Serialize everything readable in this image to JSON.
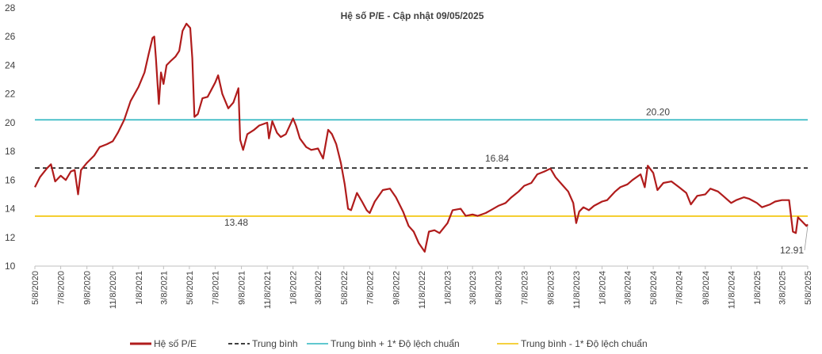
{
  "chart_data": {
    "type": "line",
    "title": "Hệ số P/E - Cập nhật 09/05/2025",
    "ylim": [
      10,
      28
    ],
    "yticks": [
      10,
      12,
      14,
      16,
      18,
      20,
      22,
      24,
      26,
      28
    ],
    "xlim": [
      "2020-05-08",
      "2025-05-08"
    ],
    "xticks": [
      "5/8/2020",
      "7/8/2020",
      "9/8/2020",
      "11/8/2020",
      "1/8/2021",
      "3/8/2021",
      "5/8/2021",
      "7/8/2021",
      "9/8/2021",
      "11/8/2021",
      "1/8/2022",
      "3/8/2022",
      "5/8/2022",
      "7/8/2022",
      "9/8/2022",
      "11/8/2022",
      "1/8/2023",
      "3/8/2023",
      "5/8/2023",
      "7/8/2023",
      "9/8/2023",
      "11/8/2023",
      "1/8/2024",
      "3/8/2024",
      "5/8/2024",
      "7/8/2024",
      "9/8/2024",
      "11/8/2024",
      "1/8/2025",
      "3/8/2025",
      "5/8/2025"
    ],
    "legend_position": "bottom",
    "grid": false,
    "reference_lines": [
      {
        "name": "Trung bình",
        "value": 16.84,
        "label": "16.84",
        "color": "#000000",
        "dash": true
      },
      {
        "name": "Trung bình + 1* Độ lệch chuẩn",
        "value": 20.2,
        "label": "20.20",
        "color": "#2bb5bf",
        "dash": false
      },
      {
        "name": "Trung bình - 1* Độ lệch chuẩn",
        "value": 13.48,
        "label": "13.48",
        "color": "#f2c200",
        "dash": false
      }
    ],
    "last_value_label": "12.91",
    "series": [
      {
        "name": "Hệ số P/E",
        "color": "#b01c1c",
        "points": [
          [
            "2020-05-08",
            15.5
          ],
          [
            "2020-05-20",
            16.2
          ],
          [
            "2020-06-05",
            16.8
          ],
          [
            "2020-06-15",
            17.1
          ],
          [
            "2020-06-25",
            15.9
          ],
          [
            "2020-07-08",
            16.3
          ],
          [
            "2020-07-20",
            16.0
          ],
          [
            "2020-08-01",
            16.6
          ],
          [
            "2020-08-10",
            16.7
          ],
          [
            "2020-08-18",
            15.0
          ],
          [
            "2020-08-25",
            16.7
          ],
          [
            "2020-09-08",
            17.2
          ],
          [
            "2020-09-25",
            17.7
          ],
          [
            "2020-10-08",
            18.3
          ],
          [
            "2020-10-25",
            18.5
          ],
          [
            "2020-11-08",
            18.7
          ],
          [
            "2020-11-20",
            19.3
          ],
          [
            "2020-12-05",
            20.2
          ],
          [
            "2020-12-20",
            21.5
          ],
          [
            "2021-01-08",
            22.5
          ],
          [
            "2021-01-22",
            23.5
          ],
          [
            "2021-02-01",
            24.8
          ],
          [
            "2021-02-10",
            25.9
          ],
          [
            "2021-02-14",
            26.0
          ],
          [
            "2021-02-18",
            24.5
          ],
          [
            "2021-02-25",
            21.3
          ],
          [
            "2021-03-02",
            23.5
          ],
          [
            "2021-03-08",
            22.7
          ],
          [
            "2021-03-15",
            24.0
          ],
          [
            "2021-03-25",
            24.3
          ],
          [
            "2021-04-05",
            24.6
          ],
          [
            "2021-04-14",
            25.0
          ],
          [
            "2021-04-22",
            26.4
          ],
          [
            "2021-05-01",
            26.9
          ],
          [
            "2021-05-10",
            26.6
          ],
          [
            "2021-05-15",
            24.5
          ],
          [
            "2021-05-20",
            20.4
          ],
          [
            "2021-05-28",
            20.6
          ],
          [
            "2021-06-08",
            21.7
          ],
          [
            "2021-06-20",
            21.8
          ],
          [
            "2021-07-08",
            22.8
          ],
          [
            "2021-07-15",
            23.3
          ],
          [
            "2021-07-25",
            22.0
          ],
          [
            "2021-08-08",
            21.0
          ],
          [
            "2021-08-20",
            21.4
          ],
          [
            "2021-09-01",
            22.4
          ],
          [
            "2021-09-05",
            18.8
          ],
          [
            "2021-09-12",
            18.1
          ],
          [
            "2021-09-22",
            19.2
          ],
          [
            "2021-10-08",
            19.5
          ],
          [
            "2021-10-20",
            19.8
          ],
          [
            "2021-11-08",
            20.0
          ],
          [
            "2021-11-12",
            18.9
          ],
          [
            "2021-11-20",
            20.1
          ],
          [
            "2021-12-01",
            19.3
          ],
          [
            "2021-12-10",
            19.0
          ],
          [
            "2021-12-22",
            19.2
          ],
          [
            "2022-01-08",
            20.3
          ],
          [
            "2022-01-15",
            19.8
          ],
          [
            "2022-01-24",
            18.9
          ],
          [
            "2022-02-08",
            18.3
          ],
          [
            "2022-02-20",
            18.1
          ],
          [
            "2022-03-08",
            18.2
          ],
          [
            "2022-03-20",
            17.5
          ],
          [
            "2022-04-01",
            19.5
          ],
          [
            "2022-04-10",
            19.2
          ],
          [
            "2022-04-20",
            18.5
          ],
          [
            "2022-05-01",
            17.2
          ],
          [
            "2022-05-10",
            15.7
          ],
          [
            "2022-05-18",
            14.0
          ],
          [
            "2022-05-25",
            13.9
          ],
          [
            "2022-06-08",
            15.1
          ],
          [
            "2022-06-20",
            14.5
          ],
          [
            "2022-07-01",
            13.9
          ],
          [
            "2022-07-08",
            13.7
          ],
          [
            "2022-07-20",
            14.5
          ],
          [
            "2022-08-08",
            15.3
          ],
          [
            "2022-08-25",
            15.4
          ],
          [
            "2022-09-08",
            14.8
          ],
          [
            "2022-09-25",
            13.8
          ],
          [
            "2022-10-08",
            12.8
          ],
          [
            "2022-10-20",
            12.4
          ],
          [
            "2022-11-01",
            11.6
          ],
          [
            "2022-11-15",
            11.0
          ],
          [
            "2022-11-25",
            12.4
          ],
          [
            "2022-12-08",
            12.5
          ],
          [
            "2022-12-20",
            12.3
          ],
          [
            "2023-01-08",
            13.0
          ],
          [
            "2023-01-20",
            13.9
          ],
          [
            "2023-02-08",
            14.0
          ],
          [
            "2023-02-20",
            13.5
          ],
          [
            "2023-03-08",
            13.6
          ],
          [
            "2023-03-20",
            13.5
          ],
          [
            "2023-04-08",
            13.7
          ],
          [
            "2023-04-20",
            13.9
          ],
          [
            "2023-05-08",
            14.2
          ],
          [
            "2023-05-25",
            14.4
          ],
          [
            "2023-06-08",
            14.8
          ],
          [
            "2023-06-25",
            15.2
          ],
          [
            "2023-07-08",
            15.6
          ],
          [
            "2023-07-25",
            15.8
          ],
          [
            "2023-08-08",
            16.4
          ],
          [
            "2023-08-25",
            16.6
          ],
          [
            "2023-09-08",
            16.8
          ],
          [
            "2023-09-20",
            16.2
          ],
          [
            "2023-10-08",
            15.6
          ],
          [
            "2023-10-20",
            15.2
          ],
          [
            "2023-11-01",
            14.4
          ],
          [
            "2023-11-08",
            13.0
          ],
          [
            "2023-11-15",
            13.8
          ],
          [
            "2023-11-25",
            14.1
          ],
          [
            "2023-12-08",
            13.9
          ],
          [
            "2023-12-20",
            14.2
          ],
          [
            "2024-01-08",
            14.5
          ],
          [
            "2024-01-20",
            14.6
          ],
          [
            "2024-02-08",
            15.2
          ],
          [
            "2024-02-20",
            15.5
          ],
          [
            "2024-03-08",
            15.7
          ],
          [
            "2024-03-20",
            16.0
          ],
          [
            "2024-04-08",
            16.4
          ],
          [
            "2024-04-18",
            15.5
          ],
          [
            "2024-04-25",
            17.0
          ],
          [
            "2024-05-08",
            16.5
          ],
          [
            "2024-05-18",
            15.3
          ],
          [
            "2024-06-01",
            15.8
          ],
          [
            "2024-06-20",
            15.9
          ],
          [
            "2024-07-08",
            15.5
          ],
          [
            "2024-07-25",
            15.1
          ],
          [
            "2024-08-05",
            14.3
          ],
          [
            "2024-08-20",
            14.9
          ],
          [
            "2024-09-08",
            15.0
          ],
          [
            "2024-09-20",
            15.4
          ],
          [
            "2024-10-08",
            15.2
          ],
          [
            "2024-10-20",
            14.9
          ],
          [
            "2024-11-08",
            14.4
          ],
          [
            "2024-11-20",
            14.6
          ],
          [
            "2024-12-08",
            14.8
          ],
          [
            "2024-12-20",
            14.7
          ],
          [
            "2025-01-08",
            14.4
          ],
          [
            "2025-01-20",
            14.1
          ],
          [
            "2025-02-08",
            14.3
          ],
          [
            "2025-02-20",
            14.5
          ],
          [
            "2025-03-08",
            14.6
          ],
          [
            "2025-03-25",
            14.6
          ],
          [
            "2025-04-03",
            12.4
          ],
          [
            "2025-04-10",
            12.3
          ],
          [
            "2025-04-15",
            13.4
          ],
          [
            "2025-04-25",
            13.1
          ],
          [
            "2025-05-05",
            12.8
          ],
          [
            "2025-05-08",
            12.91
          ]
        ]
      }
    ]
  }
}
